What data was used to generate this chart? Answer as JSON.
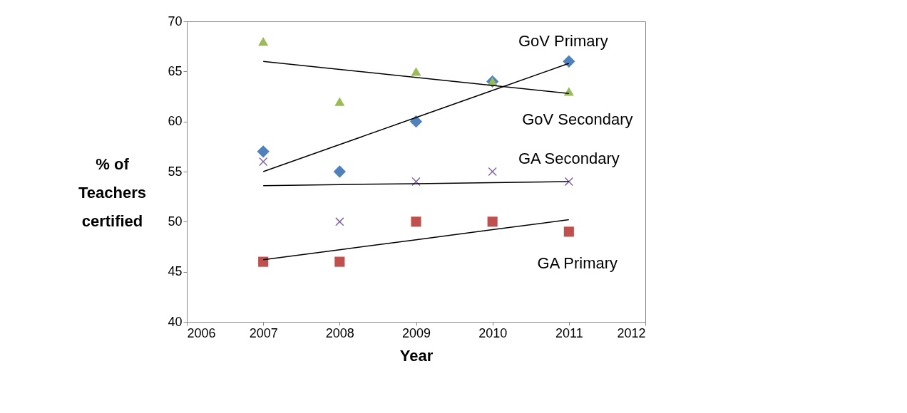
{
  "chart_data": {
    "type": "scatter",
    "xlabel": "Year",
    "ylabel": "% of Teachers certified",
    "x": [
      2007,
      2008,
      2009,
      2010,
      2011
    ],
    "series": [
      {
        "name": "GoV Primary",
        "color": "#4f81bd",
        "marker": "diamond",
        "values": [
          57,
          55,
          60,
          64,
          66
        ]
      },
      {
        "name": "GoV Secondary",
        "color": "#9bbb59",
        "marker": "triangle",
        "values": [
          68,
          62,
          65,
          64,
          63
        ]
      },
      {
        "name": "GA Secondary",
        "color": "#8064a2",
        "marker": "cross",
        "values": [
          56,
          50,
          54,
          55,
          54
        ]
      },
      {
        "name": "GA Primary",
        "color": "#c0504d",
        "marker": "square",
        "values": [
          46,
          46,
          50,
          50,
          49
        ]
      },
      {
        "type": "line",
        "color": "#000000",
        "values": [
          55,
          57.7,
          60.4,
          63.1,
          65.8
        ]
      },
      {
        "type": "line",
        "color": "#000000",
        "values": [
          66,
          65.2,
          64.4,
          63.6,
          62.8
        ]
      },
      {
        "type": "line",
        "color": "#000000",
        "values": [
          53.6,
          53.7,
          53.8,
          53.9,
          54
        ]
      },
      {
        "type": "line",
        "color": "#000000",
        "values": [
          46.2,
          47.2,
          48.2,
          49.2,
          50.2
        ]
      }
    ],
    "xlim": [
      2006,
      2012
    ],
    "xticks": [
      2006,
      2007,
      2008,
      2009,
      2010,
      2011,
      2012
    ],
    "ylim": [
      40,
      70
    ],
    "yticks": [
      40,
      45,
      50,
      55,
      60,
      65,
      70
    ],
    "grid": false
  }
}
